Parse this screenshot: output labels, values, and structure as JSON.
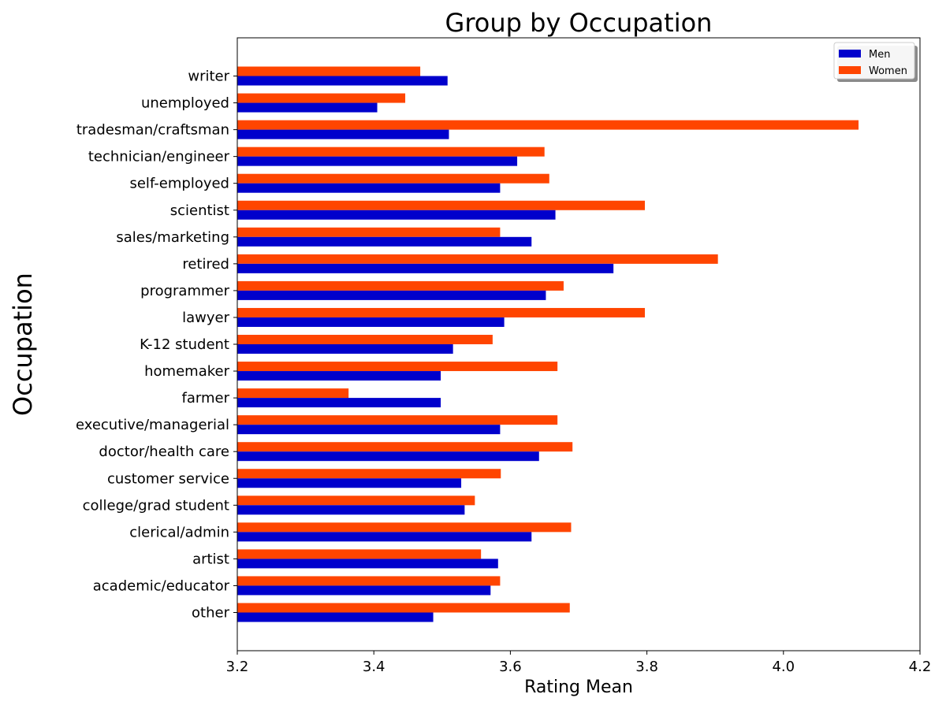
{
  "chart_data": {
    "type": "bar",
    "orientation": "horizontal",
    "title": "Group by Occupation",
    "xlabel": "Rating Mean",
    "ylabel": "Occupation",
    "xlim": [
      3.2,
      4.2
    ],
    "xticks": [
      "3.2",
      "3.4",
      "3.6",
      "3.8",
      "4.0",
      "4.2"
    ],
    "grid": false,
    "legend_position": "top-right",
    "categories": [
      "other",
      "academic/educator",
      "artist",
      "clerical/admin",
      "college/grad student",
      "customer service",
      "doctor/health care",
      "executive/managerial",
      "farmer",
      "homemaker",
      "K-12 student",
      "lawyer",
      "programmer",
      "retired",
      "sales/marketing",
      "scientist",
      "self-employed",
      "technician/engineer",
      "tradesman/craftsman",
      "unemployed",
      "writer"
    ],
    "series": [
      {
        "name": "Men",
        "color": "#0000cc",
        "values": [
          3.487,
          3.571,
          3.582,
          3.631,
          3.533,
          3.528,
          3.642,
          3.585,
          3.498,
          3.498,
          3.516,
          3.591,
          3.652,
          3.751,
          3.631,
          3.666,
          3.585,
          3.61,
          3.51,
          3.405,
          3.508
        ]
      },
      {
        "name": "Women",
        "color": "#ff4500",
        "values": [
          3.687,
          3.585,
          3.557,
          3.689,
          3.548,
          3.586,
          3.691,
          3.669,
          3.363,
          3.669,
          3.574,
          3.797,
          3.678,
          3.904,
          3.585,
          3.797,
          3.657,
          3.65,
          4.11,
          3.446,
          3.468
        ]
      }
    ]
  }
}
